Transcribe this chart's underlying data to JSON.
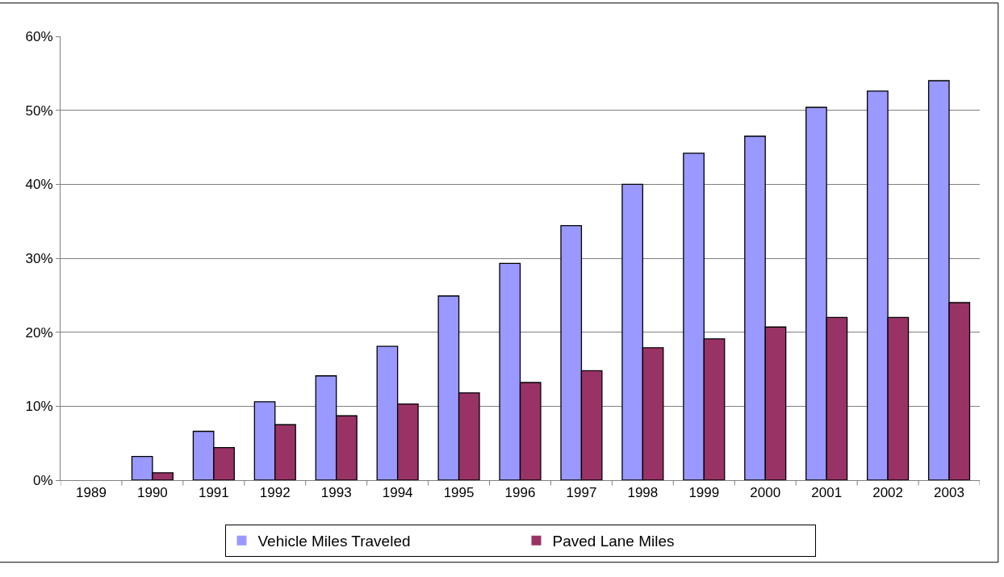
{
  "chart_data": {
    "type": "bar",
    "categories": [
      "1989",
      "1990",
      "1991",
      "1992",
      "1993",
      "1994",
      "1995",
      "1996",
      "1997",
      "1998",
      "1999",
      "2000",
      "2001",
      "2002",
      "2003"
    ],
    "series": [
      {
        "name": "Vehicle Miles Traveled",
        "color": "#9999ff",
        "values": [
          0,
          3.2,
          6.6,
          10.6,
          14.1,
          18.1,
          24.9,
          29.3,
          34.4,
          40.0,
          44.2,
          46.5,
          50.4,
          52.6,
          54.0
        ]
      },
      {
        "name": "Paved Lane Miles",
        "color": "#993366",
        "values": [
          0,
          1.0,
          4.4,
          7.5,
          8.7,
          10.3,
          11.8,
          13.2,
          14.8,
          17.9,
          19.1,
          20.7,
          22.0,
          22.0,
          24.0
        ]
      }
    ],
    "ylim": [
      0,
      60
    ],
    "yticks": [
      {
        "value": 0,
        "label": "0%"
      },
      {
        "value": 10,
        "label": "10%"
      },
      {
        "value": 20,
        "label": "20%"
      },
      {
        "value": 30,
        "label": "30%"
      },
      {
        "value": 40,
        "label": "40%"
      },
      {
        "value": 50,
        "label": "50%"
      },
      {
        "value": 60,
        "label": "60%"
      }
    ],
    "grid": "y",
    "legend": "bottom"
  }
}
